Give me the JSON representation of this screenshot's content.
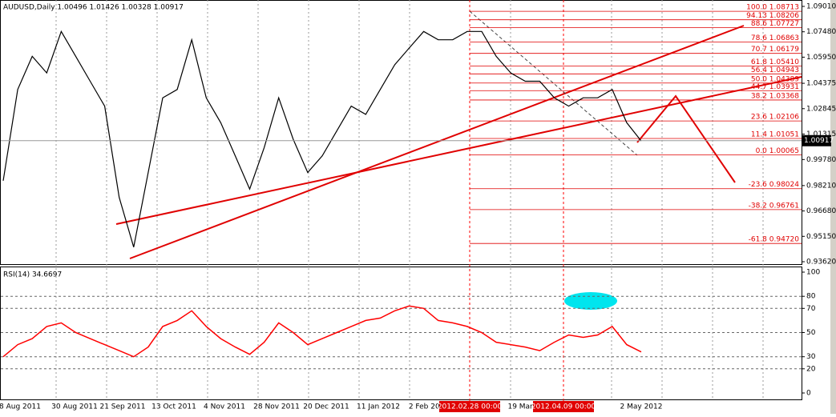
{
  "chart_data": [
    {
      "type": "line",
      "title": "AUDUSD,Daily  1.00496 1.01426 1.00328 1.00917",
      "color": "#000000",
      "values": [
        0.985,
        1.04,
        1.06,
        1.05,
        1.075,
        1.06,
        1.045,
        1.03,
        0.975,
        0.945,
        0.99,
        1.035,
        1.04,
        1.07,
        1.035,
        1.02,
        1.0,
        0.98,
        1.005,
        1.035,
        1.01,
        0.99,
        1.0,
        1.015,
        1.03,
        1.025,
        1.04,
        1.055,
        1.065,
        1.075,
        1.07,
        1.07,
        1.075,
        1.075,
        1.06,
        1.05,
        1.045,
        1.045,
        1.035,
        1.03,
        1.035,
        1.035,
        1.04,
        1.02,
        1.009
      ],
      "ylim": [
        0.9362,
        1.0901
      ],
      "yticks": [
        {
          "value": 1.0901,
          "label": "1.09010"
        },
        {
          "value": 1.0748,
          "label": "1.07480"
        },
        {
          "value": 1.0595,
          "label": "1.05950"
        },
        {
          "value": 1.04375,
          "label": "1.04375"
        },
        1.02845,
        1.01315,
        {
          "value": 0.9978,
          "label": "0.99780"
        },
        {
          "value": 0.9821,
          "label": "0.98210"
        },
        {
          "value": 0.9668,
          "label": "0.96680"
        },
        {
          "value": 0.9515,
          "label": "0.95150"
        },
        {
          "value": 0.9362,
          "label": "0.93620"
        }
      ],
      "last": 1.00917,
      "fibonacci": [
        {
          "value": 1.08713,
          "label": "100.0 1.08713"
        },
        {
          "value": 1.08206,
          "label": "94.13 1.08206"
        },
        {
          "value": 1.07727,
          "label": "88.6 1.07727"
        },
        {
          "value": 1.06863,
          "label": "78.6 1.06863"
        },
        {
          "value": 1.06179,
          "label": "70.7 1.06179"
        },
        {
          "value": 1.0541,
          "label": "61.8 1.05410"
        },
        {
          "value": 1.04943,
          "label": "56.4 1.04943"
        },
        {
          "value": 1.04389,
          "label": "50.0 1.04389"
        },
        {
          "value": 1.03931,
          "label": "44.7 1.03931"
        },
        {
          "value": 1.03368,
          "label": "38.2 1.03368"
        },
        {
          "value": 1.02106,
          "label": "23.6 1.02106"
        },
        {
          "value": 1.01051,
          "label": "11.4 1.01051"
        },
        {
          "value": 1.00065,
          "label": "0.0 1.00065"
        },
        {
          "value": 0.98024,
          "label": "-23.6 0.98024"
        },
        {
          "value": 0.96761,
          "label": "-38.2 0.96761"
        },
        {
          "value": 0.9472,
          "label": "-61.8 0.94720"
        }
      ]
    },
    {
      "type": "line",
      "title": "RSI(14) 34.6697",
      "color": "#ff0000",
      "values": [
        30,
        40,
        45,
        55,
        58,
        50,
        45,
        40,
        35,
        30,
        38,
        55,
        60,
        68,
        55,
        45,
        38,
        32,
        42,
        58,
        50,
        40,
        45,
        50,
        55,
        60,
        62,
        68,
        72,
        70,
        60,
        58,
        55,
        50,
        42,
        40,
        38,
        35,
        42,
        48,
        46,
        48,
        55,
        40,
        34
      ],
      "ylim": [
        0,
        100
      ],
      "yticks": [
        0,
        20,
        30,
        50,
        70,
        80,
        100
      ],
      "grid": true
    }
  ],
  "time_axis": [
    "8 Aug 2011",
    "30 Aug 2011",
    "21 Sep 2011",
    "13 Oct 2011",
    "4 Nov 2011",
    "28 Nov 2011",
    "20 Dec 2011",
    "11 Jan 2012",
    "2 Feb 2012",
    "19 Mar 2012",
    "2 May 2012"
  ],
  "markers": [
    "2012.02.28 00:00",
    "2012.04.09 00:00"
  ]
}
